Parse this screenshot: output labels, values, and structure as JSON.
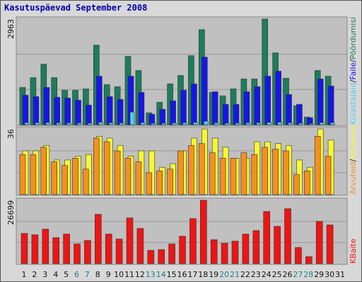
{
  "title": "Kasutuspäevad September 2008",
  "legend_separator": "/",
  "categories": [
    "1",
    "2",
    "3",
    "4",
    "5",
    "6",
    "7",
    "8",
    "9",
    "10",
    "11",
    "12",
    "13",
    "14",
    "15",
    "16",
    "17",
    "18",
    "19",
    "20",
    "21",
    "22",
    "23",
    "24",
    "25",
    "26",
    "27",
    "28",
    "29",
    "30",
    "31"
  ],
  "category_colors": [
    "#111111",
    "#111111",
    "#111111",
    "#111111",
    "#111111",
    "#208080",
    "#208080",
    "#111111",
    "#111111",
    "#111111",
    "#111111",
    "#111111",
    "#208080",
    "#208080",
    "#111111",
    "#111111",
    "#111111",
    "#111111",
    "#111111",
    "#208080",
    "#208080",
    "#111111",
    "#111111",
    "#111111",
    "#111111",
    "#111111",
    "#208080",
    "#208080",
    "#111111",
    "#111111",
    "#111111"
  ],
  "chart_data": [
    {
      "type": "bar",
      "ylim": [
        0,
        2963
      ],
      "yticks": [
        2963
      ],
      "series": [
        {
          "name": "Külastajaid",
          "color": "#55ccee",
          "values": [
            60,
            58,
            62,
            55,
            52,
            50,
            45,
            70,
            55,
            52,
            356,
            60,
            40,
            42,
            50,
            58,
            64,
            99,
            55,
            45,
            46,
            55,
            58,
            66,
            70,
            56,
            44,
            30,
            60,
            58,
            null
          ]
        },
        {
          "name": "Faile",
          "color": "#1616e8",
          "values": [
            830,
            790,
            1047,
            770,
            750,
            691,
            553,
            1363,
            790,
            711,
            1363,
            909,
            296,
            435,
            672,
            968,
            1146,
            1896,
            928,
            573,
            573,
            928,
            1067,
            1363,
            1501,
            849,
            573,
            198,
            1284,
            1086,
            null
          ]
        },
        {
          "name": "Pöördumisi",
          "color": "#1d7d5b",
          "values": [
            1047,
            1323,
            1699,
            1323,
            968,
            968,
            1007,
            2232,
            1126,
            1067,
            1916,
            1521,
            336,
            632,
            1146,
            1383,
            1936,
            2667,
            909,
            810,
            1007,
            1284,
            1284,
            2963,
            2015,
            1304,
            533,
            217,
            1521,
            1363,
            null
          ]
        }
      ]
    },
    {
      "type": "bar",
      "ylim": [
        0,
        36
      ],
      "yticks": [
        36
      ],
      "series": [
        {
          "name": "Arvuteid",
          "color": "#f49020",
          "values": [
            22,
            22,
            26,
            18,
            16,
            20,
            14,
            31,
            29,
            24,
            20,
            18,
            12,
            13,
            14,
            24,
            27,
            28,
            23,
            20,
            20,
            23,
            22,
            26,
            25,
            24,
            11,
            13,
            32,
            21,
            null
          ]
        },
        {
          "name": "Külastusi",
          "color": "#f8f830",
          "values": [
            24,
            24,
            27,
            19,
            19,
            21,
            22,
            32,
            31,
            27,
            21,
            24,
            24,
            15,
            17,
            24,
            31,
            36,
            31,
            26,
            20,
            20,
            29,
            29,
            28,
            27,
            19,
            15,
            36,
            30,
            null
          ]
        }
      ]
    },
    {
      "type": "bar",
      "ylim": [
        0,
        26699
      ],
      "yticks": [
        26699
      ],
      "series": [
        {
          "name": "KBaite",
          "color": "#ee1414",
          "values": [
            12758,
            12165,
            14538,
            10978,
            12461,
            8308,
            9791,
            20769,
            12461,
            10385,
            19286,
            14835,
            5637,
            5934,
            8308,
            11571,
            18989,
            26699,
            10088,
            8604,
            9494,
            12461,
            13945,
            21956,
            15725,
            23142,
            6824,
            2967,
            17802,
            16318,
            null
          ]
        }
      ]
    }
  ]
}
